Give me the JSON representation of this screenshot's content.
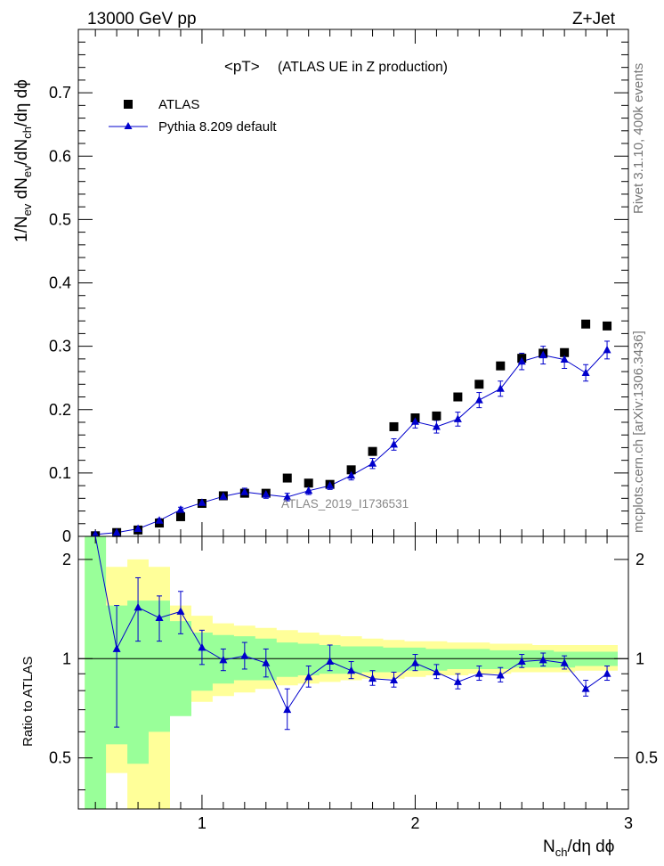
{
  "header": {
    "left": "13000 GeV pp",
    "right": "Z+Jet"
  },
  "side_labels": {
    "top": "Rivet 3.1.10,  400k events",
    "bottom": "mcplots.cern.ch [arXiv:1306.3436]"
  },
  "colors": {
    "mc": "#0000cc",
    "data": "#000000",
    "band_inner": "#99ff99",
    "band_outer": "#ffff99"
  },
  "chart_data": [
    {
      "type": "scatter",
      "title": "<pT>",
      "subtitle": "(ATLAS UE in Z production)",
      "watermark": "ATLAS_2019_I1736531",
      "ylabel": "1/Nₑᵥ dNₑᵥ/dNₕₕ/dη dϕ",
      "xlim": [
        0.42,
        3.0
      ],
      "ylim": [
        0,
        0.8
      ],
      "yticks": [
        "0",
        "0.1",
        "0.2",
        "0.3",
        "0.4",
        "0.5",
        "0.6",
        "0.7"
      ],
      "x": [
        0.5,
        0.6,
        0.7,
        0.8,
        0.9,
        1.0,
        1.1,
        1.2,
        1.3,
        1.4,
        1.5,
        1.6,
        1.7,
        1.8,
        1.9,
        2.0,
        2.1,
        2.2,
        2.3,
        2.4,
        2.5,
        2.6,
        2.7,
        2.8,
        2.9
      ],
      "legend": [
        {
          "name": "ATLAS",
          "marker": "square"
        },
        {
          "name": "Pythia 8.209 default",
          "marker": "triangle"
        }
      ],
      "series": [
        {
          "name": "ATLAS",
          "values": [
            0.001,
            0.006,
            0.01,
            0.021,
            0.031,
            0.052,
            0.064,
            0.068,
            0.068,
            0.092,
            0.084,
            0.082,
            0.105,
            0.134,
            0.173,
            0.187,
            0.19,
            0.22,
            0.24,
            0.269,
            0.281,
            0.289,
            0.29,
            0.335,
            0.332
          ]
        },
        {
          "name": "Pythia 8.209 default",
          "values": [
            0.003,
            0.006,
            0.012,
            0.025,
            0.042,
            0.053,
            0.063,
            0.07,
            0.066,
            0.062,
            0.072,
            0.08,
            0.096,
            0.115,
            0.145,
            0.181,
            0.173,
            0.185,
            0.215,
            0.233,
            0.276,
            0.286,
            0.279,
            0.258,
            0.294
          ],
          "errors": [
            0.001,
            0.001,
            0.002,
            0.003,
            0.004,
            0.005,
            0.005,
            0.006,
            0.006,
            0.006,
            0.006,
            0.006,
            0.007,
            0.008,
            0.009,
            0.01,
            0.01,
            0.011,
            0.012,
            0.012,
            0.013,
            0.014,
            0.014,
            0.013,
            0.014
          ]
        }
      ]
    },
    {
      "type": "line",
      "ylabel": "Ratio to ATLAS",
      "xlabel": "Nₕₕ/dη dϕ",
      "xlim": [
        0.42,
        3.0
      ],
      "ylim": [
        0.35,
        2.35
      ],
      "log_y": true,
      "xticks": [
        "1",
        "2",
        "3"
      ],
      "yticks": [
        "0.5",
        "1",
        "2"
      ],
      "x": [
        0.5,
        0.6,
        0.7,
        0.8,
        0.9,
        1.0,
        1.1,
        1.2,
        1.3,
        1.4,
        1.5,
        1.6,
        1.7,
        1.8,
        1.9,
        2.0,
        2.1,
        2.2,
        2.3,
        2.4,
        2.5,
        2.6,
        2.7,
        2.8,
        2.9
      ],
      "band_inner": {
        "low": [
          0.3,
          0.55,
          0.48,
          0.6,
          0.67,
          0.8,
          0.84,
          0.86,
          0.86,
          0.88,
          0.89,
          0.9,
          0.9,
          0.91,
          0.91,
          0.92,
          0.92,
          0.93,
          0.93,
          0.93,
          0.94,
          0.94,
          0.94,
          0.95,
          0.95
        ],
        "high": [
          2.4,
          1.45,
          1.5,
          1.5,
          1.3,
          1.2,
          1.18,
          1.17,
          1.15,
          1.12,
          1.11,
          1.1,
          1.09,
          1.09,
          1.08,
          1.08,
          1.07,
          1.07,
          1.07,
          1.06,
          1.06,
          1.06,
          1.05,
          1.05,
          1.05
        ]
      },
      "band_outer": {
        "low": [
          0.3,
          0.45,
          0.3,
          0.3,
          0.8,
          0.74,
          0.77,
          0.79,
          0.81,
          0.83,
          0.84,
          0.85,
          0.86,
          0.87,
          0.87,
          0.88,
          0.89,
          0.89,
          0.9,
          0.9,
          0.91,
          0.91,
          0.91,
          0.92,
          0.92
        ],
        "high": [
          2.4,
          1.9,
          2.0,
          1.9,
          1.45,
          1.35,
          1.28,
          1.26,
          1.24,
          1.22,
          1.2,
          1.18,
          1.17,
          1.15,
          1.14,
          1.13,
          1.13,
          1.12,
          1.12,
          1.11,
          1.11,
          1.1,
          1.1,
          1.1,
          1.1
        ]
      },
      "series": [
        {
          "name": "Pythia 8.209 default",
          "values": [
            3.0,
            1.07,
            1.43,
            1.33,
            1.39,
            1.08,
            0.99,
            1.02,
            0.97,
            0.7,
            0.88,
            0.98,
            0.92,
            0.87,
            0.86,
            0.97,
            0.91,
            0.85,
            0.9,
            0.89,
            0.98,
            0.99,
            0.97,
            0.81,
            0.9
          ],
          "err_low": [
            0.0,
            0.45,
            0.3,
            0.2,
            0.2,
            0.12,
            0.07,
            0.09,
            0.09,
            0.09,
            0.06,
            0.06,
            0.05,
            0.04,
            0.04,
            0.05,
            0.04,
            0.04,
            0.04,
            0.04,
            0.04,
            0.04,
            0.04,
            0.04,
            0.04
          ],
          "err_high": [
            0.0,
            0.38,
            0.33,
            0.22,
            0.21,
            0.14,
            0.08,
            0.1,
            0.1,
            0.11,
            0.07,
            0.12,
            0.06,
            0.05,
            0.05,
            0.06,
            0.05,
            0.05,
            0.05,
            0.05,
            0.05,
            0.05,
            0.05,
            0.05,
            0.05
          ]
        }
      ]
    }
  ]
}
